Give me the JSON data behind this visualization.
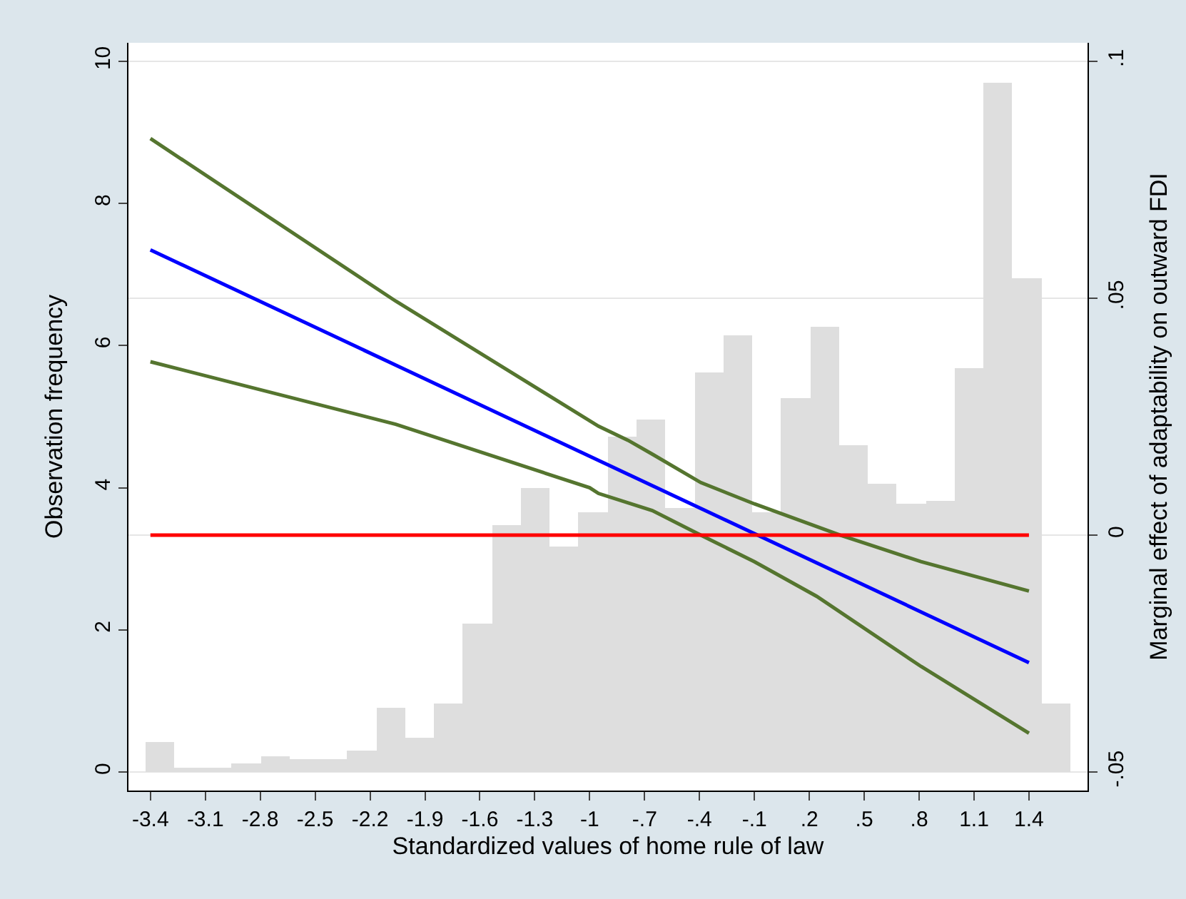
{
  "chart_data": {
    "type": "histogram",
    "xlabel": "Standardized values of home rule of law",
    "ylabel": "Observation frequency",
    "y2label": "Marginal effect of adaptability on outward FDI",
    "bins": [
      -3.43,
      -3.272,
      -3.114,
      -2.956,
      -2.798,
      -2.64,
      -2.482,
      -2.324,
      -2.166,
      -2.008,
      -1.85,
      -1.692,
      -1.534,
      -1.376,
      -1.218,
      -1.06,
      -0.902,
      -0.744,
      -0.586,
      -0.428,
      -0.27,
      -0.112,
      0.046,
      0.204,
      0.362,
      0.52,
      0.678,
      0.836,
      0.994,
      1.152,
      1.31,
      1.468,
      1.626
    ],
    "values": [
      0.42,
      0.06,
      0.06,
      0.12,
      0.23,
      0.18,
      0.18,
      0.3,
      0.91,
      0.48,
      0.97,
      2.09,
      3.48,
      4.0,
      3.17,
      3.66,
      4.71,
      4.96,
      3.72,
      5.62,
      6.15,
      3.66,
      5.27,
      6.27,
      4.6,
      4.06,
      3.78,
      3.82,
      5.69,
      9.69,
      6.94,
      0.97
    ],
    "color": "#dedede",
    "series": [
      {
        "type": "line",
        "axis": "y2",
        "color": "#55752f",
        "x": [
          -3.4,
          -2.06,
          -0.952,
          -0.79,
          -0.658,
          -0.393,
          -0.1,
          0.37,
          0.81,
          1.4
        ],
        "values": [
          0.0837,
          0.0494,
          0.023,
          0.02,
          0.0171,
          0.0111,
          0.0066,
          0.0,
          -0.0056,
          -0.0118
        ]
      },
      {
        "type": "line",
        "axis": "y2",
        "color": "#55752f",
        "x": [
          -3.4,
          -2.06,
          -1.0,
          -0.952,
          -0.658,
          -0.393,
          -0.1,
          0.24,
          0.81,
          1.4
        ],
        "values": [
          0.0366,
          0.0234,
          0.01,
          0.0088,
          0.0052,
          0.0,
          -0.0056,
          -0.0129,
          -0.0277,
          -0.0418
        ]
      },
      {
        "type": "line",
        "axis": "y2",
        "color": "#0000ff",
        "x": [
          -3.4,
          1.4
        ],
        "values": [
          0.0602,
          -0.0269
        ]
      },
      {
        "type": "line",
        "axis": "y2",
        "color": "#ff0000",
        "x": [
          -3.4,
          1.4
        ],
        "values": [
          0.0,
          0.0
        ]
      }
    ],
    "xlim": [
      -3.52,
      1.72
    ],
    "xticks": [
      {
        "value": -3.4,
        "label": "-3.4"
      },
      {
        "value": -3.1,
        "label": "-3.1"
      },
      {
        "value": -2.8,
        "label": "-2.8"
      },
      {
        "value": -2.5,
        "label": "-2.5"
      },
      {
        "value": -2.2,
        "label": "-2.2"
      },
      {
        "value": -1.9,
        "label": "-1.9"
      },
      {
        "value": -1.6,
        "label": "-1.6"
      },
      {
        "value": -1.3,
        "label": "-1.3"
      },
      {
        "value": -1,
        "label": "-1"
      },
      {
        "value": -0.7,
        "label": "-.7"
      },
      {
        "value": -0.4,
        "label": "-.4"
      },
      {
        "value": -0.1,
        "label": "-.1"
      },
      {
        "value": 0.2,
        "label": ".2"
      },
      {
        "value": 0.5,
        "label": ".5"
      },
      {
        "value": 0.8,
        "label": ".8"
      },
      {
        "value": 1.1,
        "label": "1.1"
      },
      {
        "value": 1.4,
        "label": "1.4"
      }
    ],
    "ylim": [
      -0.26,
      10.26
    ],
    "yticks": [
      0,
      2,
      4,
      6,
      8,
      10
    ],
    "y2lim": [
      -0.0539,
      0.1039
    ],
    "y2ticks": [
      {
        "value": -0.05,
        "label": "-.05"
      },
      {
        "value": 0,
        "label": "0"
      },
      {
        "value": 0.05,
        "label": ".05"
      },
      {
        "value": 0.1,
        "label": ".1"
      }
    ],
    "grid": "y2"
  }
}
